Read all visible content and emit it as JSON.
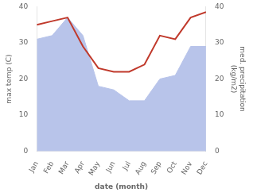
{
  "chart_data": {
    "type": "line",
    "categories": [
      "Jan",
      "Feb",
      "Mar",
      "Apr",
      "May",
      "Jun",
      "Jul",
      "Aug",
      "Sep",
      "Oct",
      "Nov",
      "Dec"
    ],
    "series": [
      {
        "type": "area",
        "color": "#b8c4ea",
        "values": [
          31,
          32,
          37,
          32,
          18,
          17,
          14,
          14,
          20,
          21,
          29,
          29
        ]
      },
      {
        "type": "line",
        "color": "#c0392b",
        "axis": "y2",
        "values": [
          35,
          36,
          37,
          29,
          23,
          22,
          22,
          24,
          32,
          31,
          37,
          38.5
        ]
      }
    ],
    "xlabel": "date (month)",
    "ylabel": "max temp (C)",
    "y2label": "med. precipitation\n(kg/m2)",
    "ylim": [
      0,
      40
    ],
    "yticks": [
      0,
      10,
      20,
      30,
      40
    ],
    "y2lim": [
      0,
      40
    ],
    "y2ticks": [
      0,
      10,
      20,
      30,
      40
    ],
    "grid": false
  }
}
